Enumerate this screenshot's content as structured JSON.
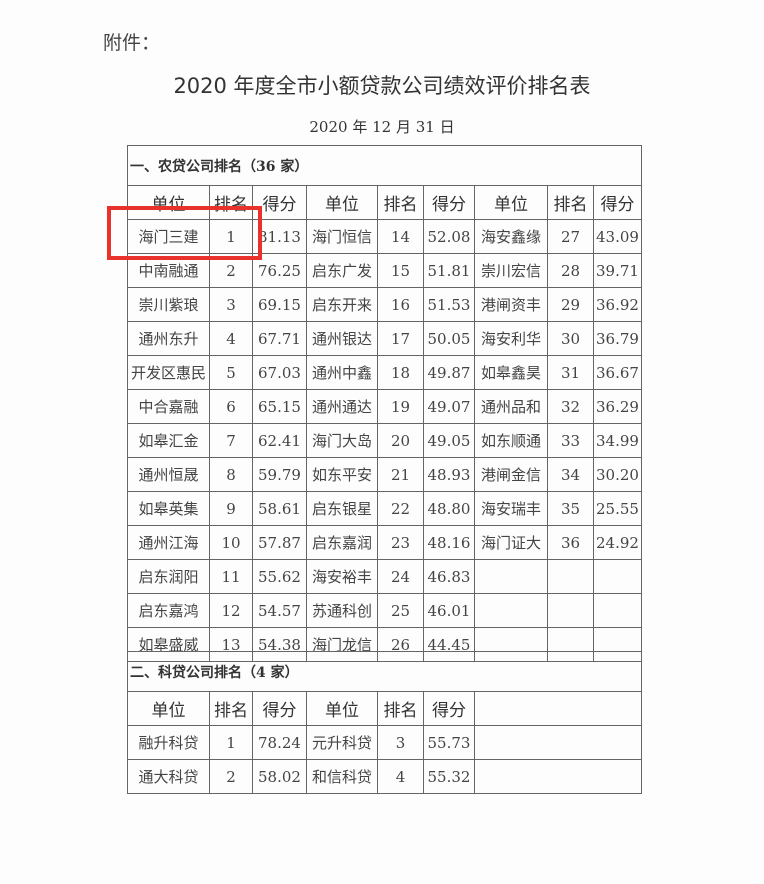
{
  "attachment_label": "附件：",
  "title": "2020 年度全市小额贷款公司绩效评价排名表",
  "date": "2020 年 12 月 31 日",
  "headers": [
    "单位",
    "排名",
    "得分"
  ],
  "section1": {
    "heading": "一、农贷公司排名（36 家）",
    "rows": [
      [
        "海门三建",
        "1",
        "81.13"
      ],
      [
        "中南融通",
        "2",
        "76.25"
      ],
      [
        "崇川紫琅",
        "3",
        "69.15"
      ],
      [
        "通州东升",
        "4",
        "67.71"
      ],
      [
        "开发区惠民",
        "5",
        "67.03"
      ],
      [
        "中合嘉融",
        "6",
        "65.15"
      ],
      [
        "如皋汇金",
        "7",
        "62.41"
      ],
      [
        "通州恒晟",
        "8",
        "59.79"
      ],
      [
        "如皋英集",
        "9",
        "58.61"
      ],
      [
        "通州江海",
        "10",
        "57.87"
      ],
      [
        "启东润阳",
        "11",
        "55.62"
      ],
      [
        "启东嘉鸿",
        "12",
        "54.57"
      ],
      [
        "如皋盛威",
        "13",
        "54.38"
      ],
      [
        "海门恒信",
        "14",
        "52.08"
      ],
      [
        "启东广发",
        "15",
        "51.81"
      ],
      [
        "启东开来",
        "16",
        "51.53"
      ],
      [
        "通州银达",
        "17",
        "50.05"
      ],
      [
        "通州中鑫",
        "18",
        "49.87"
      ],
      [
        "通州通达",
        "19",
        "49.07"
      ],
      [
        "海门大岛",
        "20",
        "49.05"
      ],
      [
        "如东平安",
        "21",
        "48.93"
      ],
      [
        "启东银星",
        "22",
        "48.80"
      ],
      [
        "启东嘉润",
        "23",
        "48.16"
      ],
      [
        "海安裕丰",
        "24",
        "46.83"
      ],
      [
        "苏通科创",
        "25",
        "46.01"
      ],
      [
        "海门龙信",
        "26",
        "44.45"
      ],
      [
        "海安鑫缘",
        "27",
        "43.09"
      ],
      [
        "崇川宏信",
        "28",
        "39.71"
      ],
      [
        "港闸资丰",
        "29",
        "36.92"
      ],
      [
        "海安利华",
        "30",
        "36.79"
      ],
      [
        "如皋鑫昊",
        "31",
        "36.67"
      ],
      [
        "通州品和",
        "32",
        "36.29"
      ],
      [
        "如东顺通",
        "33",
        "34.99"
      ],
      [
        "港闸金信",
        "34",
        "30.20"
      ],
      [
        "海安瑞丰",
        "35",
        "25.55"
      ],
      [
        "海门证大",
        "36",
        "24.92"
      ]
    ]
  },
  "section2": {
    "heading": "二、科贷公司排名（4 家）",
    "rows": [
      [
        "融升科贷",
        "1",
        "78.24"
      ],
      [
        "通大科贷",
        "2",
        "58.02"
      ],
      [
        "元升科贷",
        "3",
        "55.73"
      ],
      [
        "和信科贷",
        "4",
        "55.32"
      ]
    ]
  },
  "highlight_color": "#e8322b"
}
